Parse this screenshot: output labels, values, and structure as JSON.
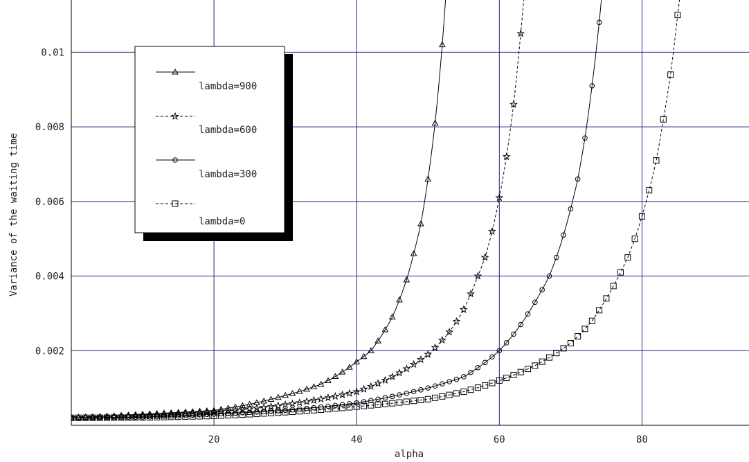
{
  "chart_data": {
    "type": "line",
    "xlabel": "alpha",
    "ylabel": "Variance of the waiting time",
    "xlim": [
      0,
      95
    ],
    "ylim": [
      0,
      0.0114
    ],
    "x_ticks": [
      {
        "value": 20,
        "label": "20"
      },
      {
        "value": 40,
        "label": "40"
      },
      {
        "value": 60,
        "label": "60"
      },
      {
        "value": 80,
        "label": "80"
      }
    ],
    "y_ticks": [
      {
        "value": 0.002,
        "label": "0.002"
      },
      {
        "value": 0.004,
        "label": "0.004"
      },
      {
        "value": 0.006,
        "label": "0.006"
      },
      {
        "value": 0.008,
        "label": "0.008"
      },
      {
        "value": 0.01,
        "label": "0.01"
      }
    ],
    "grid": true,
    "grid_color": "#1a237e",
    "legend_position": "top-left",
    "series": [
      {
        "name": "lambda=900",
        "marker": "triangle",
        "dash": "solid",
        "x_end": 52,
        "anchors": [
          [
            0,
            0.0002
          ],
          [
            10,
            0.0003
          ],
          [
            20,
            0.0004
          ],
          [
            30,
            0.0008
          ],
          [
            35,
            0.0011
          ],
          [
            40,
            0.0017
          ],
          [
            42,
            0.002
          ],
          [
            45,
            0.0029
          ],
          [
            47,
            0.0039
          ],
          [
            48,
            0.0046
          ],
          [
            49,
            0.0054
          ],
          [
            50,
            0.0066
          ],
          [
            51,
            0.0081
          ],
          [
            52,
            0.0102
          ],
          [
            52.6,
            0.0118
          ]
        ]
      },
      {
        "name": "lambda=600",
        "marker": "star",
        "dash": "dashed",
        "x_end": 63,
        "anchors": [
          [
            0,
            0.0002
          ],
          [
            10,
            0.00025
          ],
          [
            20,
            0.00035
          ],
          [
            30,
            0.00055
          ],
          [
            40,
            0.0009
          ],
          [
            45,
            0.0013
          ],
          [
            50,
            0.0019
          ],
          [
            53,
            0.0025
          ],
          [
            55,
            0.0031
          ],
          [
            57,
            0.004
          ],
          [
            58,
            0.0045
          ],
          [
            59,
            0.0052
          ],
          [
            60,
            0.0061
          ],
          [
            61,
            0.0072
          ],
          [
            62,
            0.0086
          ],
          [
            63,
            0.0105
          ],
          [
            63.6,
            0.0118
          ]
        ]
      },
      {
        "name": "lambda=300",
        "marker": "circle",
        "dash": "solid",
        "x_end": 74,
        "anchors": [
          [
            0,
            0.0002
          ],
          [
            10,
            0.00022
          ],
          [
            20,
            0.0003
          ],
          [
            30,
            0.0004
          ],
          [
            40,
            0.0006
          ],
          [
            50,
            0.001
          ],
          [
            55,
            0.0013
          ],
          [
            60,
            0.002
          ],
          [
            63,
            0.0027
          ],
          [
            65,
            0.0033
          ],
          [
            67,
            0.004
          ],
          [
            68,
            0.0045
          ],
          [
            69,
            0.0051
          ],
          [
            70,
            0.0058
          ],
          [
            71,
            0.0066
          ],
          [
            72,
            0.0077
          ],
          [
            73,
            0.0091
          ],
          [
            74,
            0.0108
          ],
          [
            74.5,
            0.0118
          ]
        ]
      },
      {
        "name": "lambda=0",
        "marker": "square",
        "dash": "dashed",
        "x_end": 85,
        "anchors": [
          [
            0,
            0.0002
          ],
          [
            10,
            0.00021
          ],
          [
            20,
            0.00025
          ],
          [
            30,
            0.00035
          ],
          [
            40,
            0.0005
          ],
          [
            50,
            0.0007
          ],
          [
            55,
            0.0009
          ],
          [
            60,
            0.0012
          ],
          [
            65,
            0.0016
          ],
          [
            70,
            0.0022
          ],
          [
            73,
            0.0028
          ],
          [
            75,
            0.0034
          ],
          [
            77,
            0.0041
          ],
          [
            78,
            0.0045
          ],
          [
            79,
            0.005
          ],
          [
            80,
            0.0056
          ],
          [
            81,
            0.0063
          ],
          [
            82,
            0.0071
          ],
          [
            83,
            0.0082
          ],
          [
            84,
            0.0094
          ],
          [
            85,
            0.011
          ],
          [
            85.5,
            0.0118
          ]
        ]
      }
    ]
  }
}
